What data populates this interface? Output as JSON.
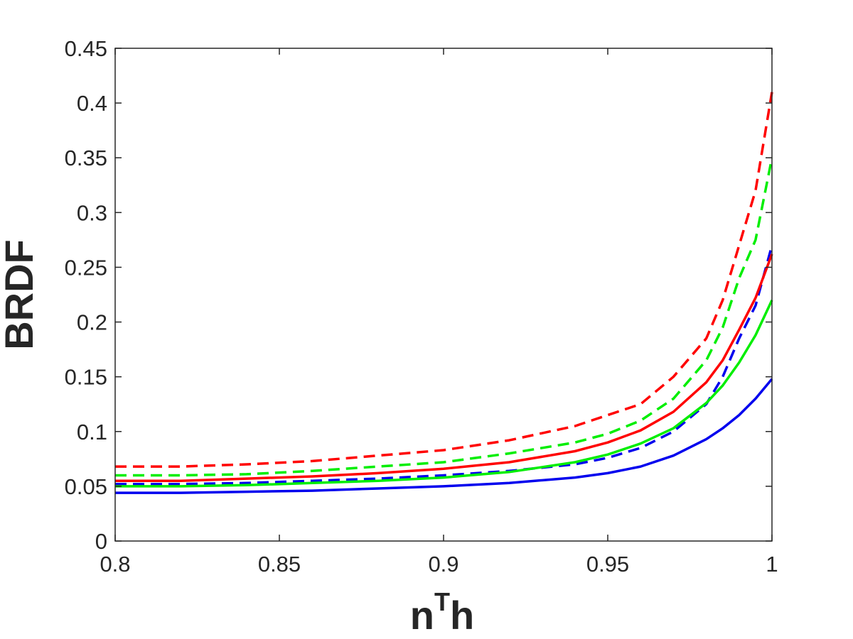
{
  "chart_data": {
    "type": "line",
    "xlabel": {
      "base": "n",
      "sup": "T",
      "tail": "h"
    },
    "ylabel": "BRDF",
    "xlim": [
      0.8,
      1.0
    ],
    "ylim": [
      0,
      0.45
    ],
    "xticks": [
      "0.8",
      "0.85",
      "0.9",
      "0.95",
      "1"
    ],
    "yticks": [
      "0",
      "0.05",
      "0.1",
      "0.15",
      "0.2",
      "0.25",
      "0.3",
      "0.35",
      "0.4",
      "0.45"
    ],
    "xtick_values": [
      0.8,
      0.85,
      0.9,
      0.95,
      1.0
    ],
    "ytick_values": [
      0,
      0.05,
      0.1,
      0.15,
      0.2,
      0.25,
      0.3,
      0.35,
      0.4,
      0.45
    ],
    "grid": false,
    "legend": "none",
    "series": [
      {
        "color": "#ff0000",
        "style": "dashed",
        "x": [
          0.8,
          0.82,
          0.84,
          0.86,
          0.88,
          0.9,
          0.92,
          0.94,
          0.95,
          0.96,
          0.97,
          0.98,
          0.985,
          0.99,
          0.995,
          1.0
        ],
        "y": [
          0.068,
          0.068,
          0.07,
          0.073,
          0.078,
          0.083,
          0.092,
          0.105,
          0.115,
          0.125,
          0.15,
          0.185,
          0.22,
          0.27,
          0.32,
          0.41
        ]
      },
      {
        "color": "#00ee00",
        "style": "dashed",
        "x": [
          0.8,
          0.82,
          0.84,
          0.86,
          0.88,
          0.9,
          0.92,
          0.94,
          0.95,
          0.96,
          0.97,
          0.98,
          0.985,
          0.99,
          0.995,
          1.0
        ],
        "y": [
          0.06,
          0.06,
          0.061,
          0.064,
          0.068,
          0.072,
          0.08,
          0.09,
          0.098,
          0.11,
          0.13,
          0.165,
          0.195,
          0.24,
          0.275,
          0.35
        ]
      },
      {
        "color": "#0000ee",
        "style": "dashed",
        "x": [
          0.8,
          0.82,
          0.84,
          0.86,
          0.88,
          0.9,
          0.92,
          0.94,
          0.95,
          0.96,
          0.97,
          0.98,
          0.985,
          0.99,
          0.995,
          1.0
        ],
        "y": [
          0.052,
          0.052,
          0.053,
          0.055,
          0.057,
          0.06,
          0.064,
          0.07,
          0.076,
          0.085,
          0.1,
          0.125,
          0.15,
          0.185,
          0.215,
          0.27
        ]
      },
      {
        "color": "#ff0000",
        "style": "solid",
        "x": [
          0.8,
          0.82,
          0.84,
          0.86,
          0.88,
          0.9,
          0.92,
          0.94,
          0.95,
          0.96,
          0.97,
          0.98,
          0.985,
          0.99,
          0.995,
          1.0
        ],
        "y": [
          0.055,
          0.055,
          0.057,
          0.059,
          0.062,
          0.066,
          0.072,
          0.082,
          0.09,
          0.101,
          0.118,
          0.145,
          0.165,
          0.193,
          0.222,
          0.262
        ]
      },
      {
        "color": "#00ee00",
        "style": "solid",
        "x": [
          0.8,
          0.82,
          0.84,
          0.86,
          0.88,
          0.9,
          0.92,
          0.94,
          0.95,
          0.96,
          0.97,
          0.98,
          0.985,
          0.99,
          0.995,
          1.0
        ],
        "y": [
          0.05,
          0.05,
          0.051,
          0.053,
          0.055,
          0.058,
          0.063,
          0.072,
          0.079,
          0.089,
          0.103,
          0.126,
          0.142,
          0.163,
          0.188,
          0.22
        ]
      },
      {
        "color": "#0000ee",
        "style": "solid",
        "x": [
          0.8,
          0.82,
          0.84,
          0.86,
          0.88,
          0.9,
          0.92,
          0.94,
          0.95,
          0.96,
          0.97,
          0.98,
          0.985,
          0.99,
          0.995,
          1.0
        ],
        "y": [
          0.044,
          0.044,
          0.045,
          0.046,
          0.048,
          0.05,
          0.053,
          0.058,
          0.062,
          0.068,
          0.078,
          0.093,
          0.103,
          0.115,
          0.13,
          0.148
        ]
      }
    ]
  }
}
